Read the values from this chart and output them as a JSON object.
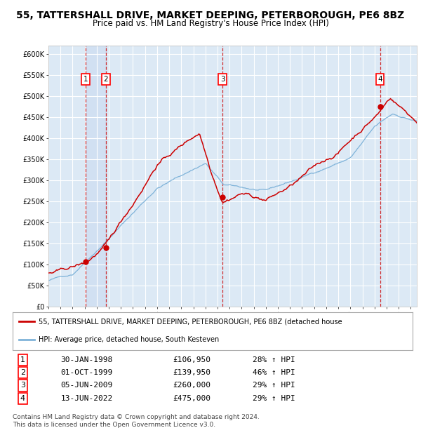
{
  "title": "55, TATTERSHALL DRIVE, MARKET DEEPING, PETERBOROUGH, PE6 8BZ",
  "subtitle": "Price paid vs. HM Land Registry's House Price Index (HPI)",
  "title_fontsize": 10,
  "subtitle_fontsize": 8.5,
  "ylim": [
    0,
    620000
  ],
  "xlim_start": 1995.0,
  "xlim_end": 2025.5,
  "yticks": [
    0,
    50000,
    100000,
    150000,
    200000,
    250000,
    300000,
    350000,
    400000,
    450000,
    500000,
    550000,
    600000
  ],
  "ytick_labels": [
    "£0",
    "£50K",
    "£100K",
    "£150K",
    "£200K",
    "£250K",
    "£300K",
    "£350K",
    "£400K",
    "£450K",
    "£500K",
    "£550K",
    "£600K"
  ],
  "xticks": [
    1995,
    1996,
    1997,
    1998,
    1999,
    2000,
    2001,
    2002,
    2003,
    2004,
    2005,
    2006,
    2007,
    2008,
    2009,
    2010,
    2011,
    2012,
    2013,
    2014,
    2015,
    2016,
    2017,
    2018,
    2019,
    2020,
    2021,
    2022,
    2023,
    2024,
    2025
  ],
  "red_line_color": "#cc0000",
  "blue_line_color": "#7fb3d9",
  "background_color": "#dce9f5",
  "plot_bg_color": "#dce9f5",
  "grid_color": "#ffffff",
  "shade_between_color": "#c8d8ee",
  "transactions": [
    {
      "num": 1,
      "year": 1998.08,
      "price": 106950,
      "date": "30-JAN-1998",
      "pct": "28%",
      "label": "£106,950"
    },
    {
      "num": 2,
      "year": 1999.75,
      "price": 139950,
      "date": "01-OCT-1999",
      "pct": "46%",
      "label": "£139,950"
    },
    {
      "num": 3,
      "year": 2009.42,
      "price": 260000,
      "date": "05-JUN-2009",
      "pct": "29%",
      "label": "£260,000"
    },
    {
      "num": 4,
      "year": 2022.45,
      "price": 475000,
      "date": "13-JUN-2022",
      "pct": "29%",
      "label": "£475,000"
    }
  ],
  "legend_line1": "55, TATTERSHALL DRIVE, MARKET DEEPING, PETERBOROUGH, PE6 8BZ (detached house",
  "legend_line2": "HPI: Average price, detached house, South Kesteven",
  "footer_line1": "Contains HM Land Registry data © Crown copyright and database right 2024.",
  "footer_line2": "This data is licensed under the Open Government Licence v3.0."
}
